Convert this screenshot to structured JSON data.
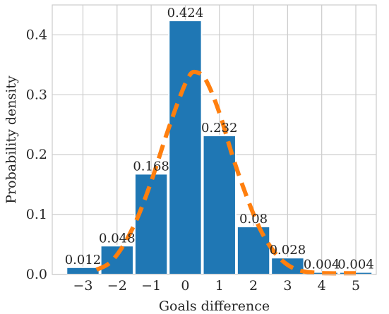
{
  "chart_data": {
    "type": "bar",
    "title": "",
    "xlabel": "Goals difference",
    "ylabel": "Probability density",
    "categories": [
      -3,
      -2,
      -1,
      0,
      1,
      2,
      3,
      4,
      5
    ],
    "category_labels": [
      "−3",
      "−2",
      "−1",
      "0",
      "1",
      "2",
      "3",
      "4",
      "5"
    ],
    "values": [
      0.012,
      0.048,
      0.168,
      0.424,
      0.232,
      0.08,
      0.028,
      0.004,
      0.004
    ],
    "value_labels": [
      "0.012",
      "0.048",
      "0.168",
      "0.424",
      "0.232",
      "0.08",
      "0.028",
      "0.004",
      "0.004"
    ],
    "xlim": [
      -3.9,
      5.6
    ],
    "ylim": [
      0,
      0.45
    ],
    "yticks": [
      0.0,
      0.1,
      0.2,
      0.3,
      0.4
    ],
    "ytick_labels": [
      "0.0",
      "0.1",
      "0.2",
      "0.3",
      "0.4"
    ],
    "grid": true,
    "curve": {
      "type": "line",
      "style": "dashed",
      "x": [
        -2.6,
        -2.2,
        -1.8,
        -1.4,
        -1.0,
        -0.6,
        -0.2,
        0.1,
        0.3,
        0.6,
        1.0,
        1.4,
        1.8,
        2.2,
        2.6,
        3.0,
        3.4,
        3.8,
        4.2,
        4.6,
        5.0
      ],
      "y": [
        0.008,
        0.02,
        0.05,
        0.095,
        0.155,
        0.225,
        0.29,
        0.33,
        0.338,
        0.325,
        0.27,
        0.195,
        0.13,
        0.075,
        0.038,
        0.016,
        0.006,
        0.003,
        0.002,
        0.002,
        0.002
      ]
    },
    "colors": {
      "bars": "#1f77b4",
      "curve": "#ff7f0e",
      "grid": "#cccccc"
    }
  }
}
